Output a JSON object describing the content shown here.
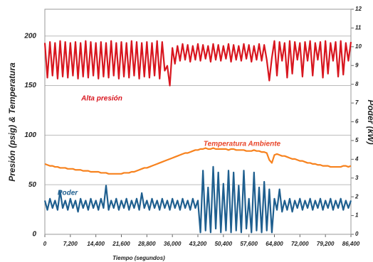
{
  "chart_data": {
    "type": "line",
    "xlabel": "Tiempo (segundos)",
    "ylabel": "Presión (psig) & Temperatura",
    "y2label": "Poder (kW)",
    "x": [
      0,
      720,
      1440,
      2160,
      2880,
      3600,
      4320,
      5040,
      5760,
      6480,
      7200,
      7920,
      8640,
      9360,
      10080,
      10800,
      11520,
      12240,
      12960,
      13680,
      14400,
      15120,
      15840,
      16560,
      17280,
      18000,
      18720,
      19440,
      20160,
      20880,
      21600,
      22320,
      23040,
      23760,
      24480,
      25200,
      25920,
      26640,
      27360,
      28080,
      28800,
      29520,
      30240,
      30960,
      31680,
      32400,
      33120,
      33840,
      34560,
      35280,
      36000,
      36720,
      37440,
      38160,
      38880,
      39600,
      40320,
      41040,
      41760,
      42480,
      43200,
      43920,
      44640,
      45360,
      46080,
      46800,
      47520,
      48240,
      48960,
      49680,
      50400,
      51120,
      51840,
      52560,
      53280,
      54000,
      54720,
      55440,
      56160,
      56880,
      57600,
      58320,
      59040,
      59760,
      60480,
      61200,
      61920,
      62640,
      63360,
      64080,
      64800,
      65520,
      66240,
      66960,
      67680,
      68400,
      69120,
      69840,
      70560,
      71280,
      72000,
      72720,
      73440,
      74160,
      74880,
      75600,
      76320,
      77040,
      77760,
      78480,
      79200,
      79920,
      80640,
      81360,
      82080,
      82800,
      83520,
      84240,
      84960,
      85680,
      86400
    ],
    "series": [
      {
        "name": "Alta presión",
        "color": "#d8161f",
        "values": [
          193,
          158,
          194,
          160,
          193,
          157,
          195,
          159,
          194,
          158,
          193,
          160,
          194,
          157,
          193,
          159,
          195,
          158,
          194,
          160,
          193,
          157,
          194,
          159,
          193,
          158,
          195,
          160,
          193,
          157,
          194,
          159,
          193,
          158,
          195,
          160,
          194,
          157,
          193,
          159,
          194,
          158,
          193,
          160,
          195,
          157,
          194,
          165,
          170,
          150,
          188,
          172,
          190,
          175,
          192,
          176,
          191,
          174,
          190,
          176,
          192,
          175,
          191,
          177,
          190,
          174,
          192,
          176,
          191,
          175,
          190,
          177,
          192,
          174,
          191,
          176,
          190,
          175,
          192,
          177,
          191,
          174,
          190,
          176,
          192,
          175,
          191,
          176,
          155,
          178,
          195,
          160,
          194,
          175,
          193,
          158,
          195,
          162,
          194,
          176,
          193,
          159,
          194,
          175,
          195,
          160,
          193,
          176,
          194,
          158,
          195,
          162,
          193,
          175,
          194,
          159,
          195,
          161,
          193,
          175,
          194
        ]
      },
      {
        "name": "Temperatura Ambiente",
        "color": "#f7821e",
        "values": [
          71,
          70,
          69,
          69,
          68,
          68,
          67,
          67,
          67,
          66,
          66,
          66,
          65,
          65,
          65,
          64,
          64,
          64,
          63,
          63,
          63,
          63,
          62,
          62,
          62,
          61,
          61,
          61,
          61,
          61,
          61,
          62,
          62,
          62,
          63,
          63,
          64,
          65,
          66,
          67,
          67,
          68,
          69,
          70,
          71,
          72,
          73,
          74,
          75,
          76,
          77,
          78,
          79,
          80,
          81,
          82,
          82,
          83,
          84,
          85,
          85,
          86,
          86,
          87,
          86,
          86,
          87,
          86,
          86,
          86,
          86,
          86,
          85,
          86,
          86,
          85,
          85,
          85,
          85,
          84,
          84,
          84,
          85,
          84,
          84,
          83,
          83,
          82,
          75,
          72,
          80,
          81,
          80,
          79,
          79,
          78,
          77,
          76,
          76,
          75,
          74,
          74,
          73,
          72,
          72,
          71,
          71,
          70,
          70,
          69,
          69,
          69,
          68,
          68,
          68,
          68,
          68,
          69,
          69,
          68,
          69
        ]
      },
      {
        "name": "Poder",
        "color": "#1f5f8f",
        "axis": "y2",
        "values": [
          1.8,
          1.3,
          1.9,
          1.4,
          1.8,
          1.3,
          2.3,
          1.4,
          1.8,
          1.3,
          1.9,
          1.4,
          1.8,
          1.2,
          1.9,
          1.4,
          1.8,
          1.3,
          1.9,
          1.4,
          1.8,
          1.3,
          1.9,
          1.4,
          2.6,
          1.3,
          1.8,
          1.4,
          1.9,
          1.3,
          1.8,
          1.4,
          1.9,
          1.3,
          1.8,
          1.4,
          1.9,
          1.3,
          2.2,
          1.4,
          1.8,
          1.3,
          1.9,
          1.4,
          1.8,
          1.3,
          1.9,
          1.4,
          1.8,
          1.3,
          1.9,
          1.4,
          1.8,
          1.3,
          1.9,
          1.4,
          1.8,
          1.3,
          1.9,
          1.4,
          1.8,
          0.1,
          3.4,
          0.2,
          2.5,
          0.1,
          3.6,
          0.3,
          3.3,
          0.1,
          2.7,
          0.2,
          3.4,
          0.1,
          3.3,
          0.2,
          2.6,
          0.1,
          3.4,
          0.3,
          1.9,
          0.1,
          3.3,
          0.2,
          2.5,
          0.1,
          2.8,
          0.2,
          2.4,
          0.1,
          1.9,
          1.3,
          2.4,
          1.2,
          1.8,
          1.3,
          1.9,
          1.2,
          1.8,
          1.4,
          1.9,
          1.3,
          1.8,
          1.4,
          1.9,
          1.3,
          1.8,
          1.4,
          1.9,
          1.3,
          1.8,
          1.4,
          1.9,
          1.3,
          1.8,
          1.4,
          1.9,
          1.3,
          1.8,
          1.4,
          1.8
        ]
      }
    ],
    "xlim": [
      0,
      86400
    ],
    "xticks": [
      0,
      {
        "value": 7200,
        "label": "7,200"
      },
      {
        "value": 14400,
        "label": "14,400"
      },
      {
        "value": 21600,
        "label": "21,600"
      },
      {
        "value": 28800,
        "label": "28,800"
      },
      {
        "value": 36000,
        "label": "36,000"
      },
      {
        "value": 43200,
        "label": "43,200"
      },
      {
        "value": 50400,
        "label": "50,400"
      },
      {
        "value": 57600,
        "label": "57,600"
      },
      {
        "value": 64800,
        "label": "64,800"
      },
      {
        "value": 72000,
        "label": "72,000"
      },
      {
        "value": 79200,
        "label": "79,200"
      },
      {
        "value": 86400,
        "label": "86,400"
      }
    ],
    "ylim": [
      0,
      227
    ],
    "yticks": [
      0,
      50,
      100,
      150,
      200
    ],
    "y2lim": [
      0,
      12
    ],
    "y2ticks": [
      0,
      1,
      2,
      3,
      4,
      5,
      6,
      7,
      8,
      9,
      10,
      11,
      12
    ],
    "grid": true
  }
}
